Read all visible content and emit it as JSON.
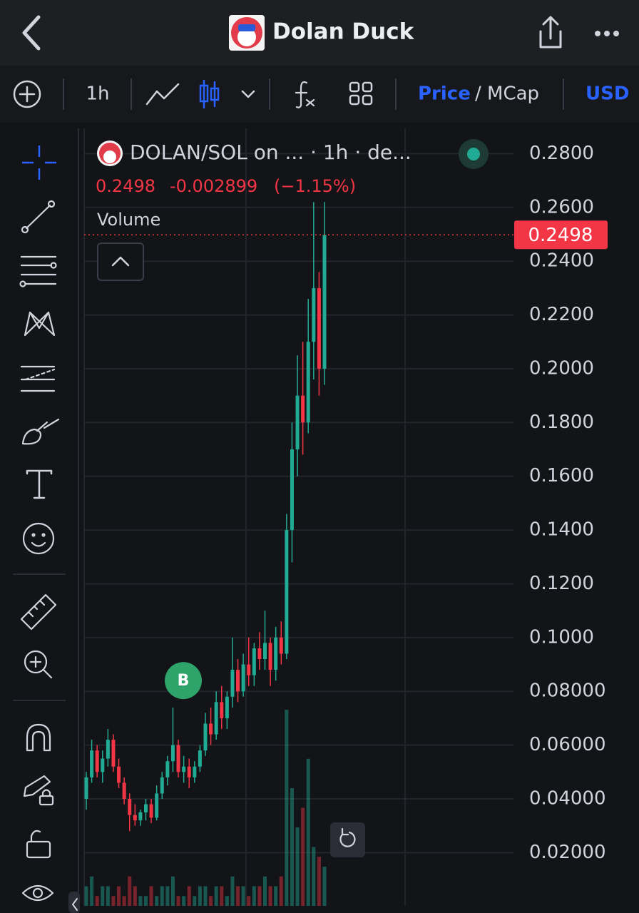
{
  "header": {
    "title": "Dolan Duck"
  },
  "toolbar": {
    "interval": "1h",
    "price": "Price",
    "mcap": "/ MCap",
    "currency": "USD"
  },
  "chart_data": {
    "type": "candlestick",
    "title": "DOLAN/SOL on ... · 1h · de...",
    "last": 0.2498,
    "change": -0.002899,
    "change_pct": {
      "value": -1.15,
      "label": "(−1.15%)"
    },
    "volume_label": "Volume",
    "up_color": "#22ab94",
    "down_color": "#f23645",
    "ylim": [
      0.0002,
      0.2894
    ],
    "yticks": [
      {
        "value": 0.28,
        "label": "0.2800"
      },
      {
        "value": 0.26,
        "label": "0.2600"
      },
      {
        "value": 0.24,
        "label": "0.2400"
      },
      {
        "value": 0.22,
        "label": "0.2200"
      },
      {
        "value": 0.2,
        "label": "0.2000"
      },
      {
        "value": 0.18,
        "label": "0.1800"
      },
      {
        "value": 0.16,
        "label": "0.1600"
      },
      {
        "value": 0.14,
        "label": "0.1400"
      },
      {
        "value": 0.12,
        "label": "0.1200"
      },
      {
        "value": 0.1,
        "label": "0.1000"
      },
      {
        "value": 0.08,
        "label": "0.08000"
      },
      {
        "value": 0.06,
        "label": "0.06000"
      },
      {
        "value": 0.04,
        "label": "0.04000"
      },
      {
        "value": 0.02,
        "label": "0.02000"
      }
    ],
    "grid": true,
    "open": [
      0.04,
      0.048,
      0.058,
      0.05,
      0.055,
      0.062,
      0.052,
      0.046,
      0.04,
      0.034,
      0.032,
      0.035,
      0.038,
      0.033,
      0.042,
      0.048,
      0.054,
      0.06,
      0.05,
      0.052,
      0.048,
      0.052,
      0.058,
      0.068,
      0.064,
      0.076,
      0.07,
      0.078,
      0.088,
      0.08,
      0.09,
      0.086,
      0.096,
      0.092,
      0.098,
      0.088,
      0.1,
      0.094,
      0.14,
      0.17,
      0.19,
      0.18,
      0.21,
      0.23,
      0.2
    ],
    "high": [
      0.05,
      0.062,
      0.06,
      0.058,
      0.066,
      0.064,
      0.055,
      0.048,
      0.042,
      0.038,
      0.036,
      0.04,
      0.04,
      0.045,
      0.05,
      0.056,
      0.074,
      0.062,
      0.056,
      0.055,
      0.054,
      0.06,
      0.072,
      0.074,
      0.08,
      0.082,
      0.08,
      0.1,
      0.092,
      0.094,
      0.1,
      0.098,
      0.102,
      0.11,
      0.1,
      0.104,
      0.106,
      0.146,
      0.18,
      0.205,
      0.21,
      0.226,
      0.262,
      0.236,
      0.262
    ],
    "low": [
      0.036,
      0.046,
      0.048,
      0.046,
      0.052,
      0.05,
      0.044,
      0.038,
      0.028,
      0.03,
      0.03,
      0.032,
      0.031,
      0.032,
      0.04,
      0.045,
      0.05,
      0.048,
      0.046,
      0.044,
      0.046,
      0.05,
      0.056,
      0.06,
      0.062,
      0.066,
      0.066,
      0.074,
      0.076,
      0.078,
      0.082,
      0.082,
      0.088,
      0.088,
      0.082,
      0.084,
      0.09,
      0.092,
      0.128,
      0.16,
      0.168,
      0.176,
      0.196,
      0.19,
      0.194
    ],
    "close": [
      0.048,
      0.058,
      0.05,
      0.055,
      0.062,
      0.052,
      0.046,
      0.04,
      0.034,
      0.032,
      0.035,
      0.038,
      0.033,
      0.042,
      0.048,
      0.054,
      0.06,
      0.05,
      0.052,
      0.048,
      0.052,
      0.058,
      0.068,
      0.064,
      0.076,
      0.07,
      0.078,
      0.088,
      0.08,
      0.09,
      0.086,
      0.096,
      0.092,
      0.098,
      0.088,
      0.1,
      0.094,
      0.14,
      0.17,
      0.19,
      0.18,
      0.21,
      0.23,
      0.2,
      0.2498
    ],
    "volume": [
      2,
      3,
      1,
      2,
      2,
      1,
      2,
      1,
      3,
      2,
      1,
      1,
      2,
      1,
      2,
      2,
      3,
      1,
      1,
      2,
      1,
      2,
      2,
      1,
      2,
      2,
      1,
      3,
      2,
      2,
      1,
      2,
      2,
      3,
      2,
      2,
      3,
      20,
      12,
      8,
      10,
      15,
      6,
      5,
      4
    ],
    "marker": {
      "label": "B",
      "value": 0.084
    }
  }
}
